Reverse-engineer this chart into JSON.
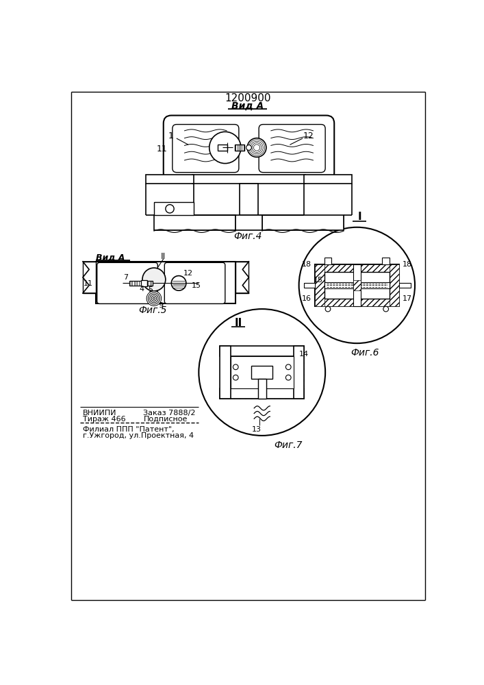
{
  "title": "1200900",
  "view_label_fig4": "Вид А",
  "view_label_fig5": "Вид А",
  "fig4_label": "Фиг.4",
  "fig5_label": "Фиг.5",
  "fig6_label": "Фиг.6",
  "fig7_label": "Фиг.7",
  "label_II_top": "II",
  "label_I": "I",
  "footer_line1a": "ВНИИПИ",
  "footer_line1b": "Заказ 7888/2",
  "footer_line2a": "Тираж 466",
  "footer_line2b": "Подписное",
  "footer_line3": "Филиал ППП \"Патент\",",
  "footer_line4": "г.Ужгород, ул.Проектная, 4",
  "bg_color": "#ffffff",
  "line_color": "#000000"
}
